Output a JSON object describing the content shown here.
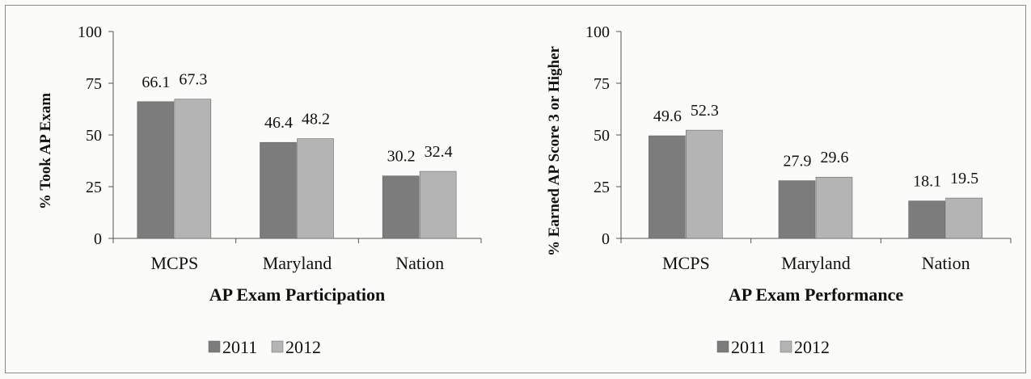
{
  "chart_data": [
    {
      "type": "bar",
      "title": "",
      "xlabel": "AP Exam Participation",
      "ylabel": "% Took AP Exam",
      "ylim": [
        0,
        100
      ],
      "yticks": [
        "0",
        "25",
        "50",
        "75",
        "100"
      ],
      "categories": [
        "MCPS",
        "Maryland",
        "Nation"
      ],
      "series": [
        {
          "name": "2011",
          "values": [
            66.1,
            46.4,
            30.2
          ],
          "color": "#7c7c7c"
        },
        {
          "name": "2012",
          "values": [
            67.3,
            48.2,
            32.4
          ],
          "color": "#b4b4b4"
        }
      ],
      "value_labels": [
        [
          "66.1",
          "46.4",
          "30.2"
        ],
        [
          "67.3",
          "48.2",
          "32.4"
        ]
      ],
      "legend": "bottom",
      "grid": false
    },
    {
      "type": "bar",
      "title": "",
      "xlabel": "AP Exam Performance",
      "ylabel": "% Earned AP Score 3 or Higher",
      "ylim": [
        0,
        100
      ],
      "yticks": [
        "0",
        "25",
        "50",
        "75",
        "100"
      ],
      "categories": [
        "MCPS",
        "Maryland",
        "Nation"
      ],
      "series": [
        {
          "name": "2011",
          "values": [
            49.6,
            27.9,
            18.1
          ],
          "color": "#7c7c7c"
        },
        {
          "name": "2012",
          "values": [
            52.3,
            29.6,
            19.5
          ],
          "color": "#b4b4b4"
        }
      ],
      "value_labels": [
        [
          "49.6",
          "27.9",
          "18.1"
        ],
        [
          "52.3",
          "29.6",
          "19.5"
        ]
      ],
      "legend": "bottom",
      "grid": false
    }
  ]
}
